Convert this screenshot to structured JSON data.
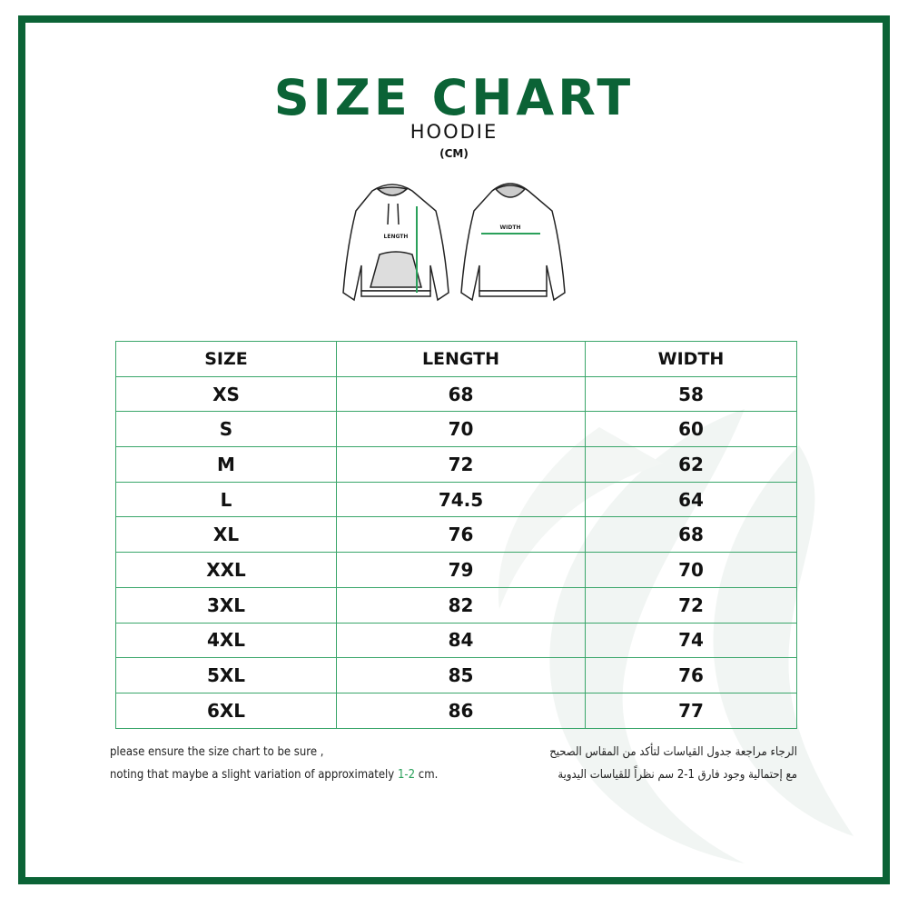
{
  "title": "SIZE CHART",
  "product": "HOODIE",
  "unit": "(CM)",
  "diagram": {
    "length_label": "LENGTH",
    "width_label": "WIDTH"
  },
  "table": {
    "headers": [
      "SIZE",
      "LENGTH",
      "WIDTH"
    ],
    "rows": [
      [
        "XS",
        "68",
        "58"
      ],
      [
        "S",
        "70",
        "60"
      ],
      [
        "M",
        "72",
        "62"
      ],
      [
        "L",
        "74.5",
        "64"
      ],
      [
        "XL",
        "76",
        "68"
      ],
      [
        "XXL",
        "79",
        "70"
      ],
      [
        "3XL",
        "82",
        "72"
      ],
      [
        "4XL",
        "84",
        "74"
      ],
      [
        "5XL",
        "85",
        "76"
      ],
      [
        "6XL",
        "86",
        "77"
      ]
    ]
  },
  "notes": {
    "en_line1": "please ensure the size chart to be sure ,",
    "en_line2_prefix": "noting that maybe a slight variation of approximately ",
    "en_line2_range": "1-2",
    "en_line2_suffix": " cm.",
    "ar_line1": "الرجاء مراجعة جدول القياسات لتأكد من المقاس الصحيح",
    "ar_line2": "مع إحتمالية وجود فارق  1-2  سم نظراً للقياسات اليدوية"
  },
  "colors": {
    "brand": "#0b6336",
    "accent": "#2aa05a"
  }
}
